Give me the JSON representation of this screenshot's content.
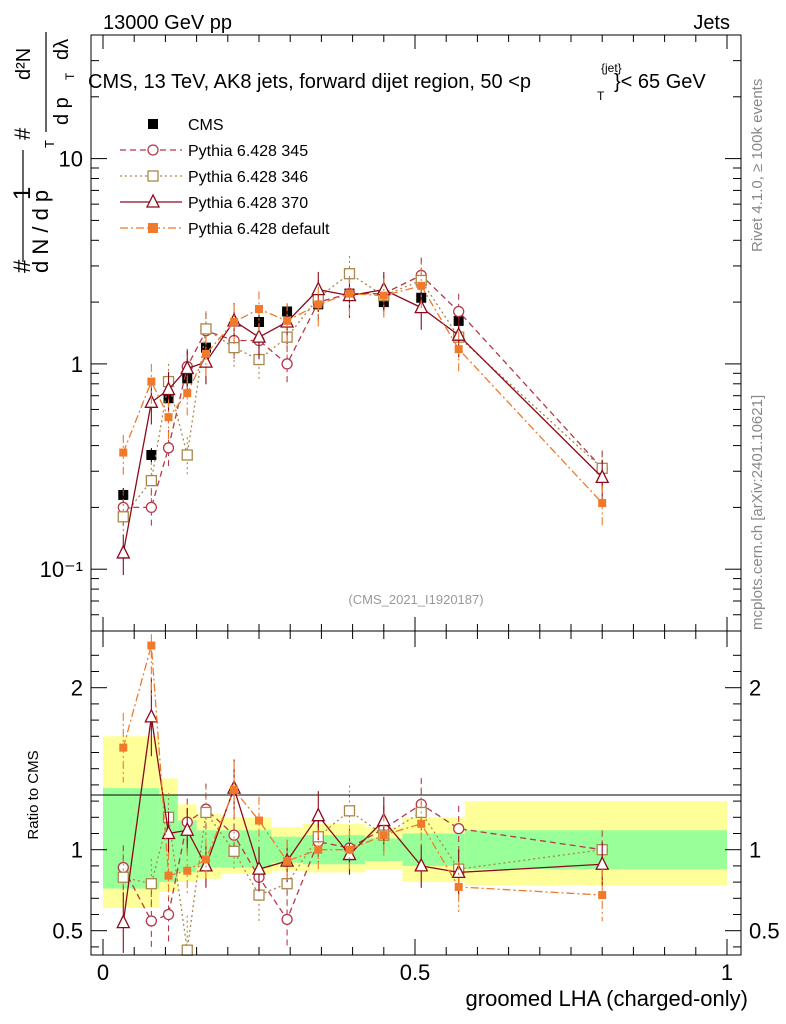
{
  "header": {
    "left": "13000 GeV pp",
    "right": "Jets"
  },
  "side_labels": {
    "rivet": "Rivet 4.1.0, ≥ 100k events",
    "mcplots": "mcplots.cern.ch [arXiv:2401.10621]"
  },
  "colors": {
    "cms": "#000000",
    "p345": "#b5394b",
    "p346": "#a8874a",
    "p370": "#8b0a1a",
    "pdef": "#f07a2a",
    "band_inner": "#99ff99",
    "band_outer": "#ffff99"
  },
  "chart_data": [
    {
      "type": "line",
      "name": "main",
      "title": "CMS, 13 TeV, AK8 jets, forward dijet region, 50 <p_T^{jet}< 65 GeV",
      "title_parts": {
        "pre": "CMS, 13 TeV, AK8 jets, forward dijet region, 50 <p",
        "sub": "T",
        "sup": "{jet}",
        "post": "}< 65 GeV"
      },
      "ylabel": "1/(dN/dp_T) d²N/(dp_T dλ)",
      "ylabel_parts": {
        "hash": "#",
        "one": "1",
        "den": "d N / d p",
        "T": "T",
        "num": "d²N",
        "den2": "d p",
        "dl": "dλ"
      },
      "yscale": "log",
      "xlim": [
        0,
        1
      ],
      "ylim": [
        0.05,
        40
      ],
      "y_ticks": [
        {
          "value": 0.1,
          "label": "10⁻¹"
        },
        {
          "value": 1,
          "label": "1"
        },
        {
          "value": 10,
          "label": "10"
        }
      ],
      "watermark": "(CMS_2021_I1920187)",
      "legend_position": "top-left",
      "x": [
        0.0325,
        0.0775,
        0.105,
        0.135,
        0.165,
        0.21,
        0.25,
        0.295,
        0.345,
        0.395,
        0.45,
        0.51,
        0.57,
        0.8
      ],
      "series": [
        {
          "name": "CMS",
          "style": "cms",
          "values": [
            0.23,
            0.36,
            0.68,
            0.85,
            1.2,
            1.2,
            1.6,
            1.8,
            1.95,
            2.2,
            2.0,
            2.1,
            1.62,
            0.31
          ]
        },
        {
          "name": "Pythia 6.428 345",
          "style": "p345",
          "values": [
            0.2,
            0.2,
            0.39,
            0.97,
            1.45,
            1.3,
            1.3,
            1.0,
            2.0,
            2.2,
            2.2,
            2.7,
            1.8,
            0.31
          ]
        },
        {
          "name": "Pythia 6.428 346",
          "style": "p346",
          "values": [
            0.18,
            0.27,
            0.82,
            0.36,
            1.48,
            1.2,
            1.05,
            1.35,
            2.1,
            2.75,
            2.15,
            2.55,
            1.35,
            0.31
          ]
        },
        {
          "name": "Pythia 6.428 370",
          "style": "p370",
          "values": [
            0.12,
            0.65,
            0.75,
            0.95,
            1.02,
            1.62,
            1.35,
            1.6,
            2.3,
            2.15,
            2.3,
            1.88,
            1.38,
            0.28
          ]
        },
        {
          "name": "Pythia 6.428 default",
          "style": "pdef",
          "values": [
            0.37,
            0.82,
            0.55,
            0.72,
            1.12,
            1.6,
            1.85,
            1.62,
            1.95,
            2.2,
            2.15,
            2.4,
            1.18,
            0.21
          ]
        }
      ]
    },
    {
      "type": "line",
      "name": "ratio",
      "ylabel": "Ratio to CMS",
      "xlabel": "groomed LHA (charged-only)",
      "xlim": [
        0,
        1
      ],
      "ylim": [
        0.35,
        2.35
      ],
      "x_ticks": [
        {
          "value": 0,
          "label": "0"
        },
        {
          "value": 0.5,
          "label": "0.5"
        },
        {
          "value": 1,
          "label": "1"
        }
      ],
      "y_ticks": [
        {
          "value": 0.5,
          "label": "0.5"
        },
        {
          "value": 1,
          "label": "1"
        },
        {
          "value": 2,
          "label": "2"
        }
      ],
      "x": [
        0.0325,
        0.0775,
        0.105,
        0.135,
        0.165,
        0.21,
        0.25,
        0.295,
        0.345,
        0.395,
        0.45,
        0.51,
        0.57,
        0.8
      ],
      "bands": {
        "edges": [
          0,
          0.09,
          0.12,
          0.15,
          0.19,
          0.27,
          0.32,
          0.42,
          0.48,
          0.58,
          1.0
        ],
        "inner": [
          [
            0.76,
            1.38
          ],
          [
            0.8,
            1.34
          ],
          [
            0.86,
            1.18
          ],
          [
            0.89,
            1.12
          ],
          [
            0.89,
            1.12
          ],
          [
            0.92,
            1.08
          ],
          [
            0.91,
            1.09
          ],
          [
            0.93,
            1.07
          ],
          [
            0.9,
            1.1
          ],
          [
            0.88,
            1.12
          ]
        ],
        "outer": [
          [
            0.64,
            1.7
          ],
          [
            0.74,
            1.44
          ],
          [
            0.8,
            1.28
          ],
          [
            0.82,
            1.22
          ],
          [
            0.85,
            1.2
          ],
          [
            0.87,
            1.14
          ],
          [
            0.86,
            1.16
          ],
          [
            0.88,
            1.14
          ],
          [
            0.8,
            1.2
          ],
          [
            0.78,
            1.3
          ]
        ]
      },
      "series": [
        {
          "name": "Pythia 6.428 345",
          "style": "p345",
          "values": [
            0.89,
            0.56,
            0.6,
            1.17,
            1.25,
            1.09,
            0.83,
            0.57,
            1.05,
            1.01,
            1.13,
            1.28,
            1.13,
            1.0
          ]
        },
        {
          "name": "Pythia 6.428 346",
          "style": "p346",
          "values": [
            0.83,
            0.79,
            1.2,
            0.38,
            1.23,
            0.99,
            0.72,
            0.79,
            1.08,
            1.24,
            1.09,
            1.23,
            0.88,
            1.0
          ]
        },
        {
          "name": "Pythia 6.428 370",
          "style": "p370",
          "values": [
            0.55,
            1.82,
            1.1,
            1.12,
            0.9,
            1.38,
            0.88,
            0.93,
            1.21,
            0.97,
            1.18,
            0.9,
            0.86,
            0.91
          ]
        },
        {
          "name": "Pythia 6.428 default",
          "style": "pdef",
          "values": [
            1.63,
            2.26,
            0.84,
            0.87,
            0.94,
            1.37,
            1.18,
            0.93,
            1.0,
            1.0,
            1.09,
            1.16,
            0.77,
            0.72
          ]
        }
      ]
    }
  ]
}
